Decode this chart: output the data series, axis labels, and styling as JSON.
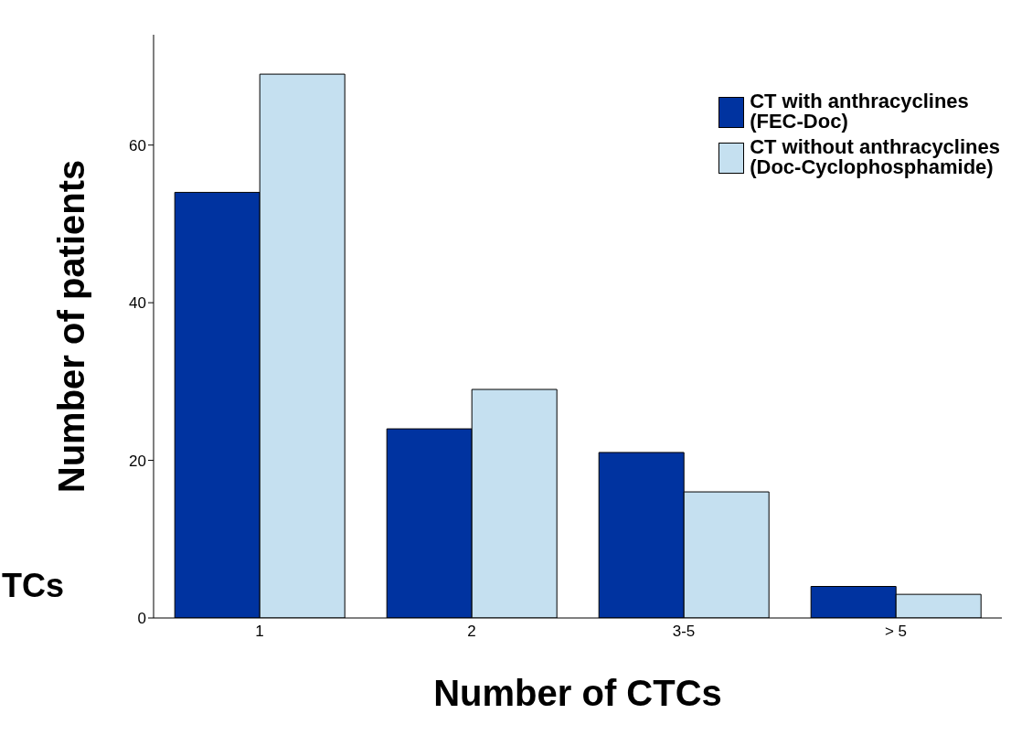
{
  "chart_data": {
    "type": "bar",
    "xlabel": "Number of CTCs",
    "ylabel": "Number of patients",
    "categories": [
      "1",
      "2",
      "3-5",
      "> 5"
    ],
    "series": [
      {
        "name": "CT with anthracyclines\n(FEC-Doc)",
        "color": "#0033a0",
        "values": [
          54,
          24,
          21,
          4
        ]
      },
      {
        "name": "CT without anthracyclines\n(Doc-Cyclophosphamide)",
        "color": "#c5e0f0",
        "values": [
          69,
          29,
          16,
          3
        ]
      }
    ],
    "ylim": [
      0,
      74
    ],
    "yticks": [
      0,
      20,
      40,
      60
    ],
    "grid": false,
    "legend": "top right",
    "annotations": [
      "TCs"
    ]
  }
}
